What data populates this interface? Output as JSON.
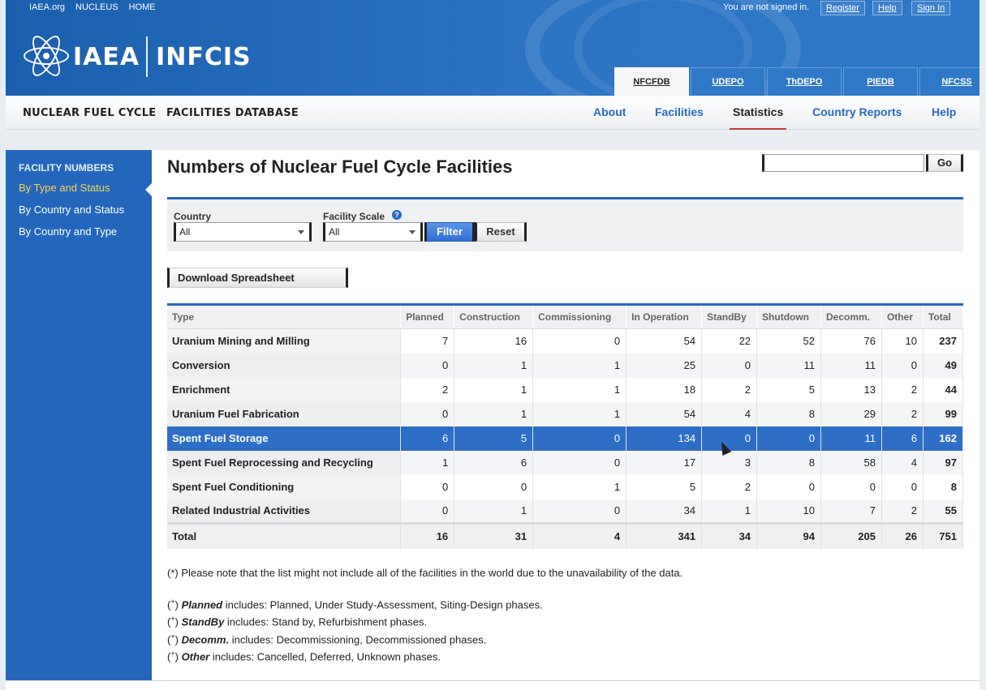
{
  "top_links": [
    "IAEA.org",
    "NUCLEUS",
    "HOME"
  ],
  "account": {
    "status": "You are not signed in.",
    "register": "Register",
    "help": "Help",
    "signin": "Sign In"
  },
  "logo": {
    "org": "IAEA",
    "product": "INFCIS"
  },
  "db_tabs": [
    "NFCFDB",
    "UDEPO",
    "ThDEPO",
    "PIEDB",
    "NFCSS"
  ],
  "subnav": {
    "title_part1": "NUCLEAR FUEL CYCLE",
    "title_part2": "FACILITIES DATABASE"
  },
  "main_nav": [
    "About",
    "Facilities",
    "Statistics",
    "Country Reports",
    "Help"
  ],
  "sidebar": {
    "heading": "FACILITY NUMBERS",
    "items": [
      "By Type and Status",
      "By Country and Status",
      "By Country and Type"
    ]
  },
  "page_title": "Numbers of Nuclear Fuel Cycle Facilities",
  "search": {
    "value": "",
    "go_label": "Go"
  },
  "filters": {
    "country_label": "Country",
    "country_value": "All",
    "scale_label": "Facility Scale",
    "scale_value": "All",
    "help_glyph": "?",
    "filter_label": "Filter",
    "reset_label": "Reset"
  },
  "download_label": "Download Spreadsheet",
  "table": {
    "headers": [
      "Type",
      "Planned",
      "Construction",
      "Commissioning",
      "In Operation",
      "StandBy",
      "Shutdown",
      "Decomm.",
      "Other",
      "Total"
    ],
    "rows": [
      {
        "type": "Uranium Mining and Milling",
        "values": [
          "7",
          "16",
          "0",
          "54",
          "22",
          "52",
          "76",
          "10",
          "237"
        ]
      },
      {
        "type": "Conversion",
        "values": [
          "0",
          "1",
          "1",
          "25",
          "0",
          "11",
          "11",
          "0",
          "49"
        ]
      },
      {
        "type": "Enrichment",
        "values": [
          "2",
          "1",
          "1",
          "18",
          "2",
          "5",
          "13",
          "2",
          "44"
        ]
      },
      {
        "type": "Uranium Fuel Fabrication",
        "values": [
          "0",
          "1",
          "1",
          "54",
          "4",
          "8",
          "29",
          "2",
          "99"
        ]
      },
      {
        "type": "Spent Fuel Storage",
        "values": [
          "6",
          "5",
          "0",
          "134",
          "0",
          "0",
          "11",
          "6",
          "162"
        ]
      },
      {
        "type": "Spent Fuel Reprocessing and Recycling",
        "values": [
          "1",
          "6",
          "0",
          "17",
          "3",
          "8",
          "58",
          "4",
          "97"
        ]
      },
      {
        "type": "Spent Fuel Conditioning",
        "values": [
          "0",
          "0",
          "1",
          "5",
          "2",
          "0",
          "0",
          "0",
          "8"
        ]
      },
      {
        "type": "Related Industrial Activities",
        "values": [
          "0",
          "1",
          "0",
          "34",
          "1",
          "10",
          "7",
          "2",
          "55"
        ]
      }
    ],
    "selected_row": "Spent Fuel Storage",
    "total": {
      "label": "Total",
      "values": [
        "16",
        "31",
        "4",
        "341",
        "34",
        "94",
        "205",
        "26",
        "751"
      ]
    }
  },
  "note": "(*) Please note that the list might not include all of the facilities in the world due to the unavailability of the data.",
  "legend": [
    {
      "term": "Planned",
      "text": "includes: Planned, Under Study-Assessment, Siting-Design phases."
    },
    {
      "term": "StandBy",
      "text": "includes: Stand by, Refurbishment phases."
    },
    {
      "term": "Decomm.",
      "text": "includes: Decommissioning, Decommissioned phases."
    },
    {
      "term": "Other",
      "text": "includes: Cancelled, Deferred, Unknown phases."
    }
  ],
  "colors": {
    "brand_blue": "#2566bd",
    "header_blue": "#2d74c4",
    "active_sidebar": "#f4d44a",
    "selected_row": "#2f6ec7",
    "nav_active_underline": "#c23a3a"
  }
}
